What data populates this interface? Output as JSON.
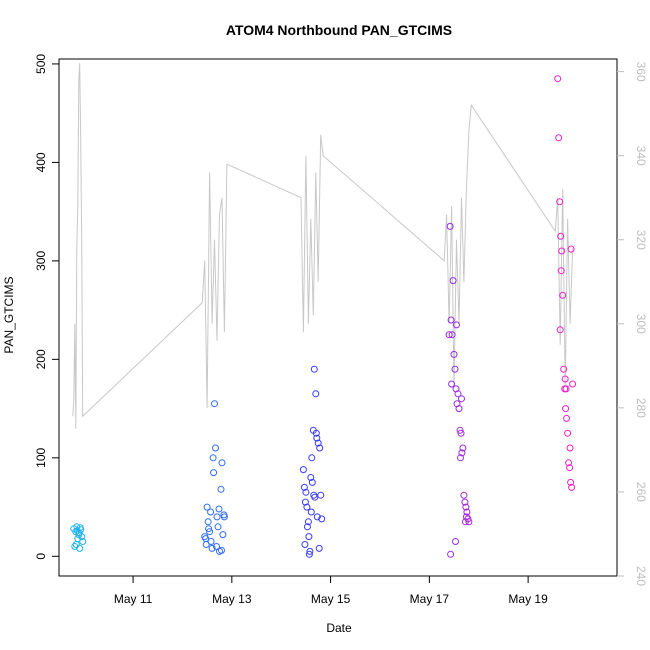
{
  "chart_data": {
    "type": "scatter",
    "title": "ATOM4 Northbound PAN_GTCIMS",
    "xlabel": "Date",
    "ylabel": "PAN_GTCIMS",
    "x_unit": "day of May",
    "xlim": [
      9.5,
      20.8
    ],
    "ylim": [
      -20,
      505
    ],
    "y_ticks": [
      0,
      100,
      200,
      300,
      400,
      500
    ],
    "x_ticks": [
      11,
      13,
      15,
      17,
      19
    ],
    "x_tick_labels": [
      "May 11",
      "May 13",
      "May 15",
      "May 17",
      "May 19"
    ],
    "y2lim": [
      240,
      363
    ],
    "y2_ticks": [
      240,
      260,
      280,
      300,
      320,
      340,
      360
    ],
    "colors": {
      "line": "#c8c8c8",
      "right_axis": "#bdbdbd",
      "points_start": "#22b5f0",
      "points_mid": "#3a37f5",
      "points_end": "#f020c8"
    },
    "series": [
      {
        "name": "PAN_GTCIMS",
        "kind": "scatter",
        "axis": "left",
        "x": [
          9.8,
          9.82,
          9.84,
          9.86,
          9.88,
          9.9,
          9.92,
          9.94,
          9.96,
          9.98,
          9.85,
          9.87,
          9.91,
          9.93,
          12.45,
          12.48,
          12.5,
          12.52,
          12.55,
          12.57,
          12.6,
          12.62,
          12.65,
          12.67,
          12.7,
          12.72,
          12.75,
          12.78,
          12.8,
          12.82,
          12.85,
          12.47,
          12.53,
          12.58,
          12.63,
          12.69,
          12.74,
          12.79,
          12.84,
          14.45,
          14.48,
          14.5,
          14.52,
          14.55,
          14.57,
          14.6,
          14.62,
          14.65,
          14.67,
          14.7,
          14.72,
          14.75,
          14.78,
          14.8,
          14.82,
          14.47,
          14.53,
          14.58,
          14.63,
          14.68,
          14.73,
          14.77,
          14.49,
          14.56,
          14.61,
          14.66,
          14.71,
          17.4,
          17.42,
          17.44,
          17.46,
          17.48,
          17.5,
          17.52,
          17.54,
          17.56,
          17.58,
          17.6,
          17.62,
          17.64,
          17.66,
          17.68,
          17.7,
          17.72,
          17.74,
          17.76,
          17.78,
          17.8,
          17.45,
          17.55,
          17.65,
          17.75,
          17.43,
          17.53,
          17.63,
          17.73,
          19.6,
          19.62,
          19.64,
          19.66,
          19.68,
          19.7,
          19.72,
          19.74,
          19.76,
          19.78,
          19.8,
          19.82,
          19.84,
          19.86,
          19.88,
          19.9,
          19.65,
          19.75,
          19.85,
          19.67,
          19.77,
          19.87
        ],
        "y": [
          28,
          10,
          25,
          30,
          18,
          22,
          8,
          27,
          20,
          15,
          12,
          26,
          24,
          29,
          20,
          12,
          50,
          35,
          25,
          45,
          8,
          100,
          155,
          110,
          40,
          30,
          5,
          68,
          95,
          22,
          40,
          18,
          28,
          15,
          85,
          10,
          48,
          6,
          42,
          88,
          12,
          65,
          50,
          35,
          2,
          80,
          100,
          128,
          190,
          165,
          120,
          115,
          110,
          62,
          38,
          70,
          30,
          5,
          75,
          60,
          40,
          8,
          55,
          20,
          45,
          62,
          125,
          225,
          335,
          240,
          225,
          280,
          205,
          190,
          170,
          155,
          165,
          150,
          128,
          125,
          105,
          110,
          62,
          55,
          50,
          45,
          38,
          35,
          175,
          235,
          160,
          40,
          2,
          15,
          100,
          35,
          485,
          425,
          360,
          325,
          310,
          265,
          190,
          170,
          150,
          140,
          125,
          95,
          90,
          75,
          70,
          175,
          230,
          180,
          110,
          290,
          170,
          312
        ]
      },
      {
        "name": "PAN_GTCIMS (right axis)",
        "kind": "line",
        "axis": "right",
        "x": [
          9.78,
          9.8,
          9.82,
          9.84,
          9.86,
          9.88,
          9.9,
          9.92,
          9.94,
          9.96,
          9.98,
          12.4,
          12.45,
          12.5,
          12.55,
          12.6,
          12.65,
          12.7,
          12.75,
          12.8,
          12.85,
          12.9,
          14.4,
          14.45,
          14.5,
          14.55,
          14.6,
          14.65,
          14.7,
          14.75,
          14.8,
          14.85,
          17.3,
          17.35,
          17.4,
          17.45,
          17.5,
          17.55,
          17.6,
          17.65,
          17.7,
          17.75,
          17.8,
          17.85,
          19.55,
          19.6,
          19.65,
          19.7,
          19.75,
          19.8,
          19.85,
          19.9
        ],
        "y": [
          278,
          282,
          300,
          275,
          318,
          328,
          358,
          362,
          344,
          320,
          278,
          305,
          315,
          280,
          336,
          300,
          320,
          296,
          326,
          330,
          298,
          338,
          330,
          298,
          340,
          300,
          325,
          302,
          336,
          310,
          345,
          340,
          315,
          326,
          300,
          328,
          285,
          320,
          300,
          330,
          310,
          332,
          346,
          352,
          322,
          330,
          295,
          332,
          285,
          325,
          300,
          318
        ]
      }
    ]
  }
}
